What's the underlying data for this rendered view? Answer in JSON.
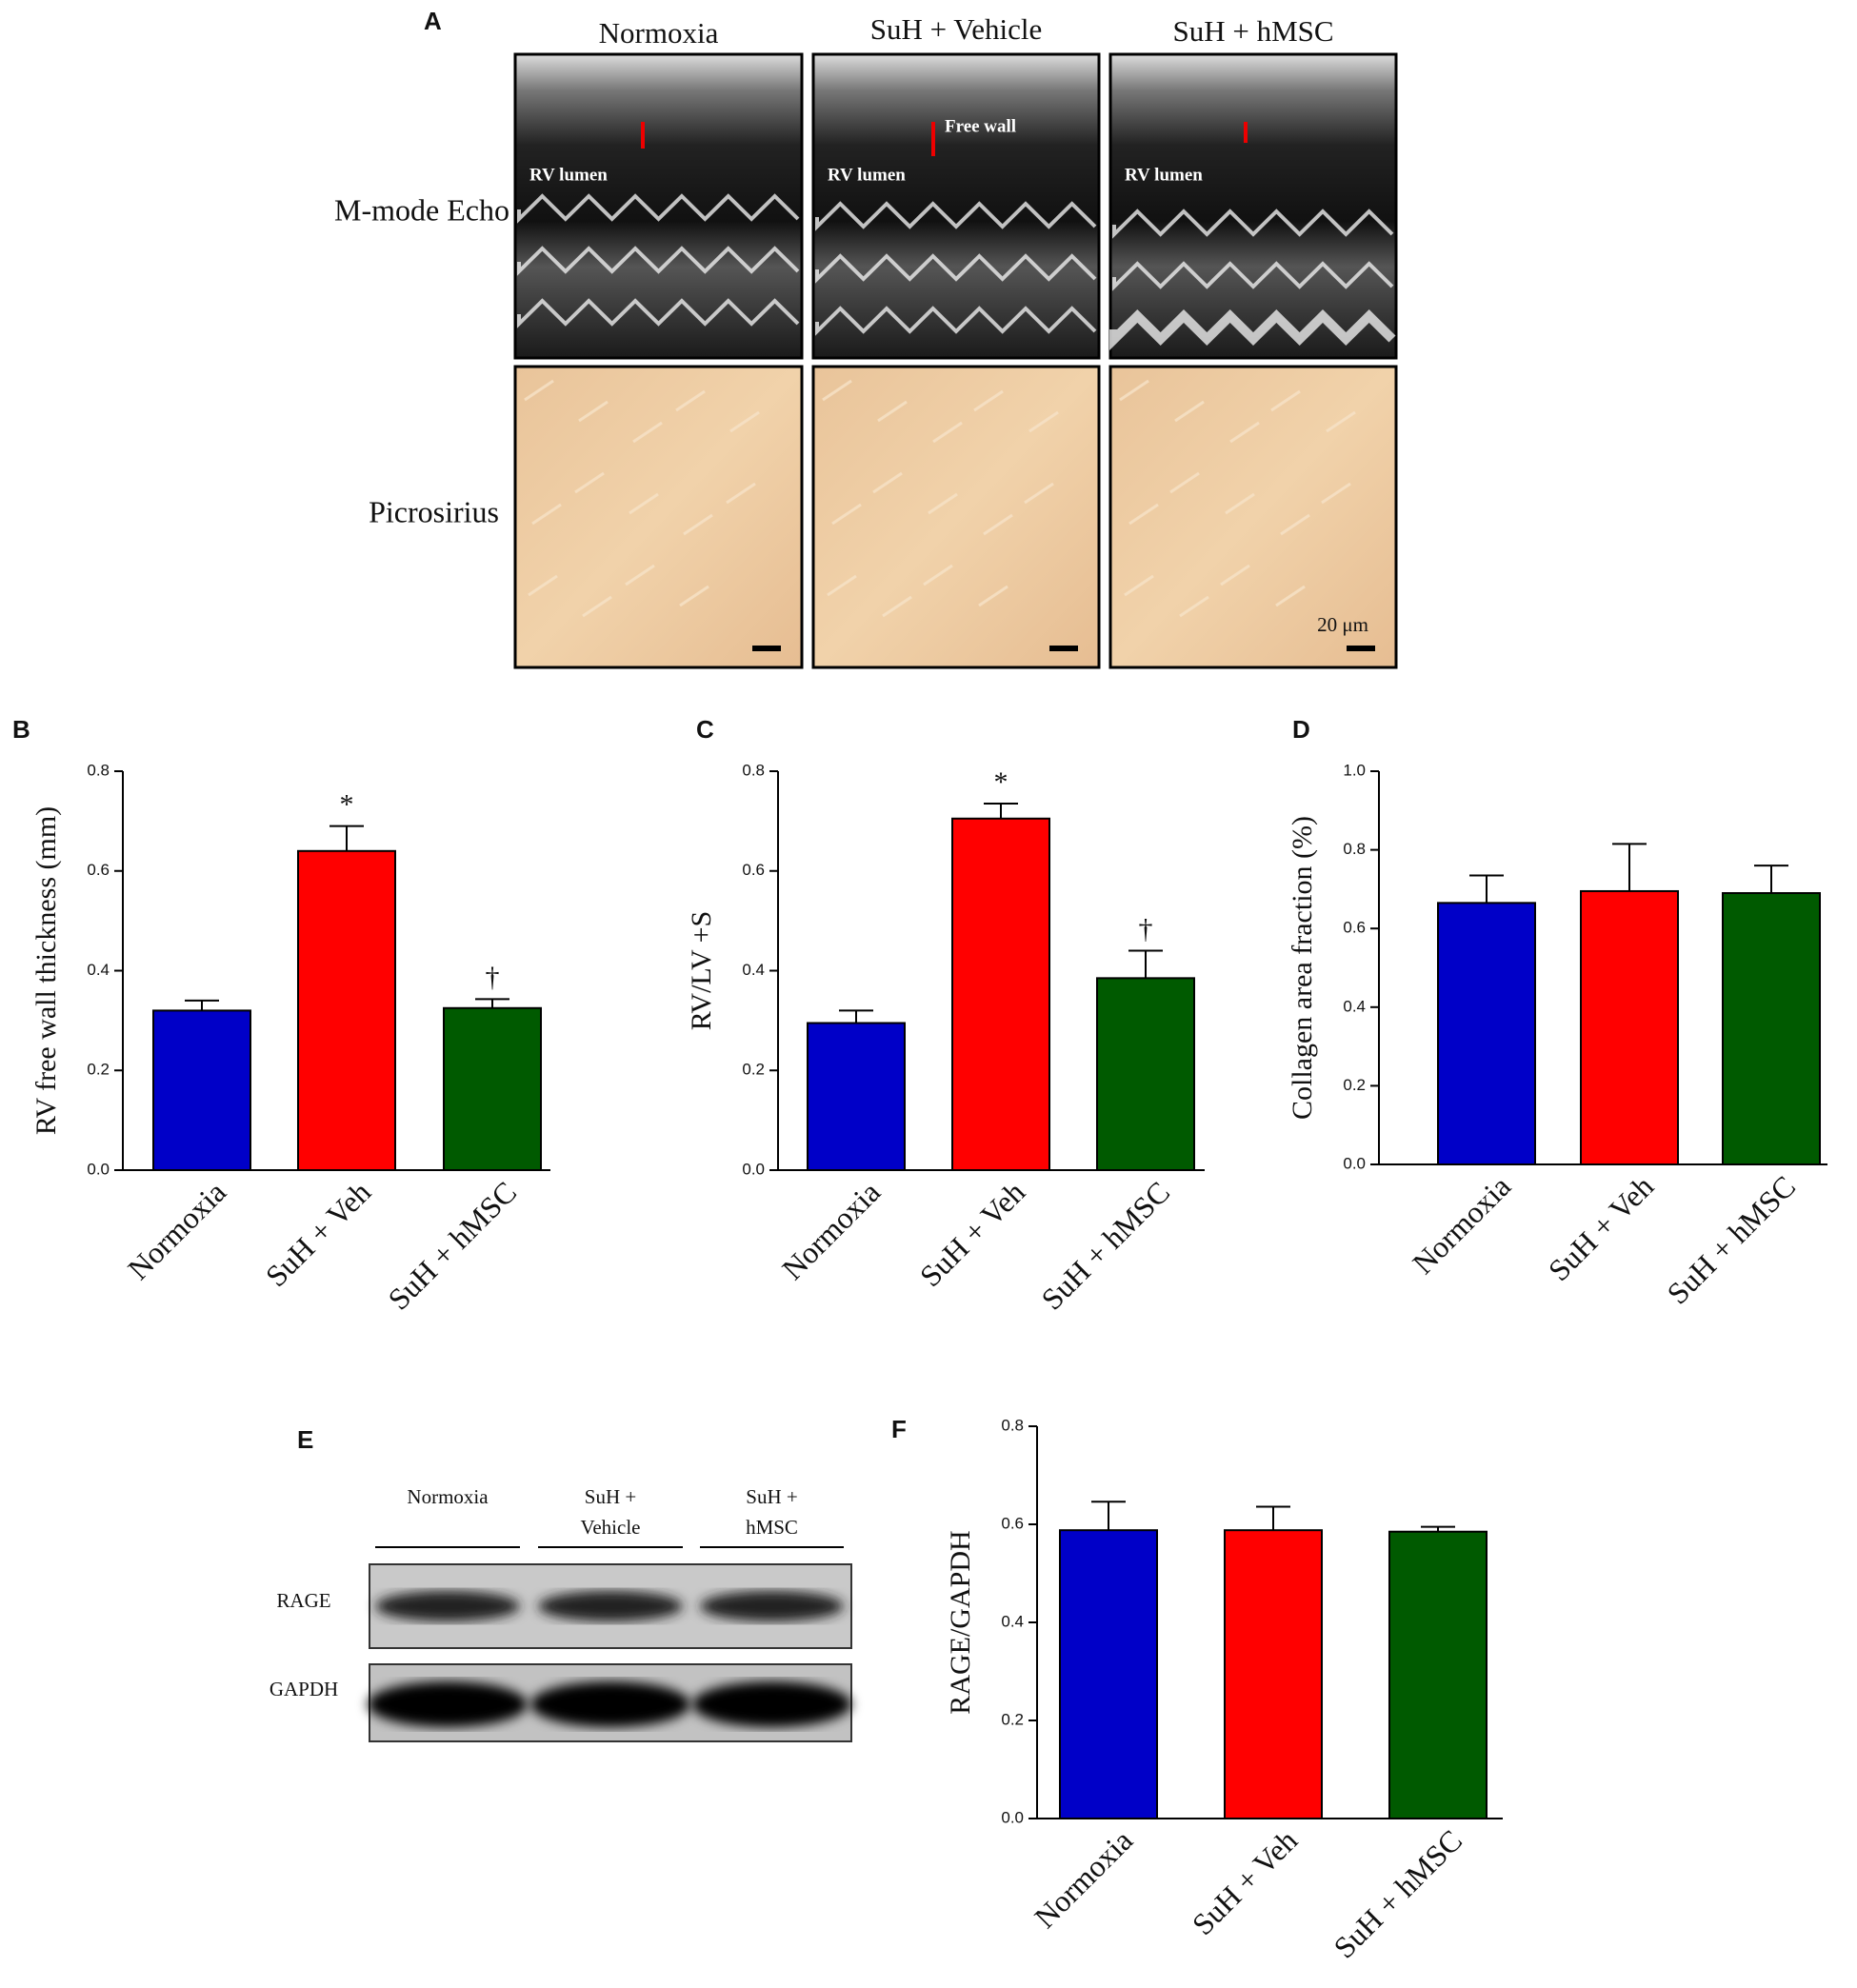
{
  "panel_a": {
    "label": "A",
    "columns": [
      "Normoxia",
      "SuH + Vehicle",
      "SuH + hMSC"
    ],
    "rows": [
      "M-mode Echo",
      "Picrosirius"
    ],
    "lumen_labels": [
      "RV lumen",
      "RV lumen",
      "RV lumen"
    ],
    "free_wall": "Free wall",
    "scale_bar": "20 μm"
  },
  "panel_e": {
    "label": "E",
    "lanes": [
      [
        "Normoxia"
      ],
      [
        "SuH +",
        "Vehicle"
      ],
      [
        "SuH +",
        "hMSC"
      ]
    ],
    "rows": [
      "RAGE",
      "GAPDH"
    ]
  },
  "chart_data": [
    {
      "type": "bar",
      "label": "B",
      "ylabel": "RV free wall thickness (mm)",
      "categories": [
        "Normoxia",
        "SuH + Veh",
        "SuH + hMSC"
      ],
      "values": [
        0.32,
        0.64,
        0.325
      ],
      "errors": [
        0.02,
        0.05,
        0.018
      ],
      "colors": [
        "#0000c8",
        "#ff0000",
        "#005a00"
      ],
      "ylim": [
        0,
        0.8
      ],
      "yticks": [
        {
          "value": 0,
          "label": "0.0"
        },
        0.2,
        0.4,
        0.6,
        0.8
      ],
      "annotations": [
        {
          "text": "*",
          "category": "SuH + Veh"
        },
        {
          "text": "†",
          "category": "SuH + hMSC"
        }
      ]
    },
    {
      "type": "bar",
      "label": "C",
      "ylabel": "RV/LV +S",
      "categories": [
        "Normoxia",
        "SuH + Veh",
        "SuH + hMSC"
      ],
      "values": [
        0.295,
        0.705,
        0.385
      ],
      "errors": [
        0.025,
        0.03,
        0.055
      ],
      "colors": [
        "#0000c8",
        "#ff0000",
        "#005a00"
      ],
      "ylim": [
        0,
        0.8
      ],
      "yticks": [
        {
          "value": 0,
          "label": "0.0"
        },
        0.2,
        0.4,
        0.6,
        0.8
      ],
      "annotations": [
        {
          "text": "*",
          "category": "SuH + Veh"
        },
        {
          "text": "†",
          "category": "SuH + hMSC"
        }
      ]
    },
    {
      "type": "bar",
      "label": "D",
      "ylabel": "Collagen area fraction (%)",
      "categories": [
        "Normoxia",
        "SuH + Veh",
        "SuH + hMSC"
      ],
      "values": [
        0.665,
        0.695,
        0.69
      ],
      "errors": [
        0.07,
        0.12,
        0.07
      ],
      "colors": [
        "#0000c8",
        "#ff0000",
        "#005a00"
      ],
      "ylim": [
        0,
        1
      ],
      "yticks": [
        {
          "value": 0,
          "label": "0.0"
        },
        0.2,
        0.4,
        0.6,
        0.8,
        {
          "value": 1,
          "label": "1.0"
        }
      ]
    },
    {
      "type": "bar",
      "label": "F",
      "ylabel": "RAGE/GAPDH",
      "categories": [
        "Normoxia",
        "SuH + Veh",
        "SuH + hMSC"
      ],
      "values": [
        0.588,
        0.588,
        0.585
      ],
      "errors": [
        0.058,
        0.048,
        0.01
      ],
      "colors": [
        "#0000c8",
        "#ff0000",
        "#005a00"
      ],
      "ylim": [
        0,
        0.8
      ],
      "yticks": [
        {
          "value": 0,
          "label": "0.0"
        },
        0.2,
        0.4,
        0.6,
        0.8
      ]
    }
  ]
}
